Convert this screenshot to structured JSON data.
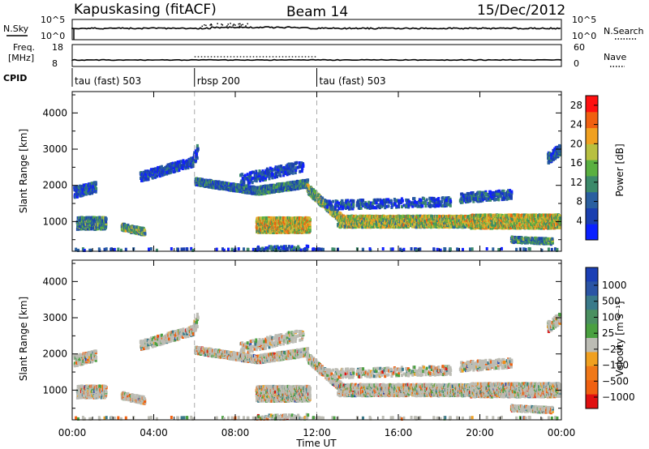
{
  "header": {
    "station": "Kapuskasing (fitACF)",
    "beam": "Beam 14",
    "date": "15/Dec/2012"
  },
  "strip_panels": {
    "nsky": {
      "label": "N.Sky",
      "ticks": [
        "10^5",
        "10^0"
      ],
      "right_label": "N.Search",
      "right_ticks": [
        "10^5",
        "10^0"
      ]
    },
    "freq": {
      "label_line1": "Freq.",
      "label_line2": "[MHz]",
      "ticks": [
        "18",
        "8"
      ],
      "right_label": "Nave",
      "right_ticks": [
        "60",
        "0"
      ]
    },
    "cpid": {
      "label": "CPID",
      "segments": [
        {
          "label": "tau (fast) 503",
          "start_hour": 0,
          "end_hour": 6
        },
        {
          "label": "rbsp 200",
          "start_hour": 6,
          "end_hour": 12
        },
        {
          "label": "tau (fast) 503",
          "start_hour": 12,
          "end_hour": 24
        }
      ]
    }
  },
  "chart_data": [
    {
      "type": "heatmap",
      "name": "power",
      "ylabel": "Slant Range [km]",
      "xlabel": "Time UT",
      "x_ticks": [
        "00:00",
        "04:00",
        "08:00",
        "12:00",
        "16:00",
        "20:00",
        "00:00"
      ],
      "x_range_hours": [
        0,
        24
      ],
      "y_ticks": [
        1000,
        2000,
        3000,
        4000
      ],
      "y_range_km": [
        180,
        4590
      ],
      "colorbar": {
        "label": "Power [dB]",
        "ticks": [
          "4",
          "8",
          "12",
          "16",
          "20",
          "24",
          "28"
        ],
        "range": [
          0,
          30
        ]
      },
      "vertical_markers_hours": [
        6,
        12
      ]
    },
    {
      "type": "heatmap",
      "name": "velocity",
      "ylabel": "Slant Range [km]",
      "xlabel": "Time UT",
      "x_ticks": [
        "00:00",
        "04:00",
        "08:00",
        "12:00",
        "16:00",
        "20:00",
        "00:00"
      ],
      "x_range_hours": [
        0,
        24
      ],
      "y_ticks": [
        1000,
        2000,
        3000,
        4000
      ],
      "y_range_km": [
        180,
        4590
      ],
      "colorbar": {
        "label": "Velocity [m s⁻¹]",
        "ticks": [
          "1000",
          "500",
          "100",
          "25",
          "−25",
          "−100",
          "−500",
          "−1000"
        ]
      },
      "vertical_markers_hours": [
        6,
        12
      ]
    }
  ],
  "axis_title": "Time UT"
}
